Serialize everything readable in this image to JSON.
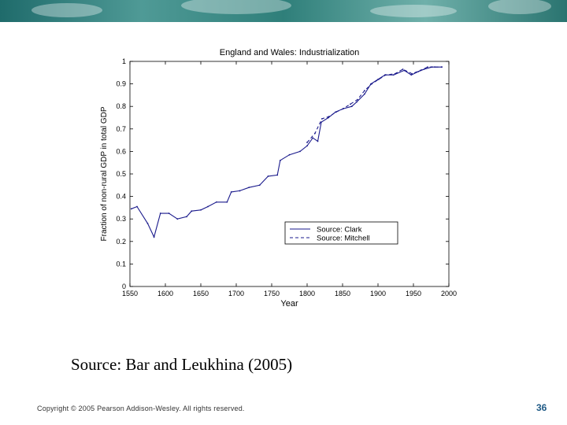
{
  "slide": {
    "source_caption": "Source: Bar and Leukhina (2005)",
    "copyright": "Copyright © 2005 Pearson Addison-Wesley. All rights reserved.",
    "page_number": "36",
    "banner_color": "#3f8c88",
    "page_number_color": "#1f5a86"
  },
  "chart_data": {
    "type": "line",
    "title": "England and Wales: Industrialization",
    "xlabel": "Year",
    "ylabel": "Fraction of non-rural GDP in total GDP",
    "xlim": [
      1550,
      2000
    ],
    "ylim": [
      0,
      1
    ],
    "xticks": [
      1550,
      1600,
      1650,
      1700,
      1750,
      1800,
      1850,
      1900,
      1950,
      2000
    ],
    "yticks": [
      0,
      0.1,
      0.2,
      0.3,
      0.4,
      0.5,
      0.6,
      0.7,
      0.8,
      0.9,
      1
    ],
    "xtick_labels": [
      "1550",
      "1600",
      "1650",
      "1700",
      "1750",
      "1800",
      "1850",
      "1900",
      "1950",
      "2000"
    ],
    "ytick_labels": [
      "0",
      "0.1",
      "0.2",
      "0.3",
      "0.4",
      "0.5",
      "0.6",
      "0.7",
      "0.8",
      "0.9",
      "1"
    ],
    "legend": {
      "position": "lower-right",
      "entries": [
        "Source: Clark",
        "Source: Mitchell"
      ]
    },
    "grid": false,
    "series": [
      {
        "name": "Source: Clark",
        "style": "solid",
        "color": "#1a1a8c",
        "x": [
          1552,
          1560,
          1575,
          1584,
          1593,
          1605,
          1617,
          1630,
          1637,
          1650,
          1660,
          1672,
          1687,
          1693,
          1705,
          1718,
          1733,
          1745,
          1758,
          1762,
          1775,
          1790,
          1800,
          1808,
          1815,
          1820,
          1830,
          1840,
          1851,
          1863,
          1870,
          1881,
          1890,
          1900,
          1910,
          1922,
          1937,
          1947,
          1957,
          1965,
          1976,
          1990
        ],
        "y": [
          0.345,
          0.355,
          0.28,
          0.22,
          0.325,
          0.325,
          0.3,
          0.31,
          0.335,
          0.34,
          0.355,
          0.375,
          0.375,
          0.42,
          0.425,
          0.44,
          0.45,
          0.49,
          0.495,
          0.56,
          0.585,
          0.6,
          0.625,
          0.66,
          0.645,
          0.73,
          0.75,
          0.775,
          0.79,
          0.8,
          0.82,
          0.855,
          0.9,
          0.92,
          0.94,
          0.94,
          0.96,
          0.94,
          0.955,
          0.965,
          0.975,
          0.975
        ]
      },
      {
        "name": "Source: Mitchell",
        "style": "dashed",
        "color": "#1a1a8c",
        "x": [
          1800,
          1811,
          1821,
          1831,
          1841,
          1851,
          1861,
          1871,
          1881,
          1891,
          1901,
          1911,
          1924,
          1935,
          1948,
          1960,
          1970,
          1980,
          1990
        ],
        "y": [
          0.64,
          0.68,
          0.745,
          0.755,
          0.775,
          0.79,
          0.81,
          0.83,
          0.87,
          0.9,
          0.92,
          0.94,
          0.945,
          0.965,
          0.945,
          0.96,
          0.975,
          0.975,
          0.975
        ]
      }
    ]
  }
}
